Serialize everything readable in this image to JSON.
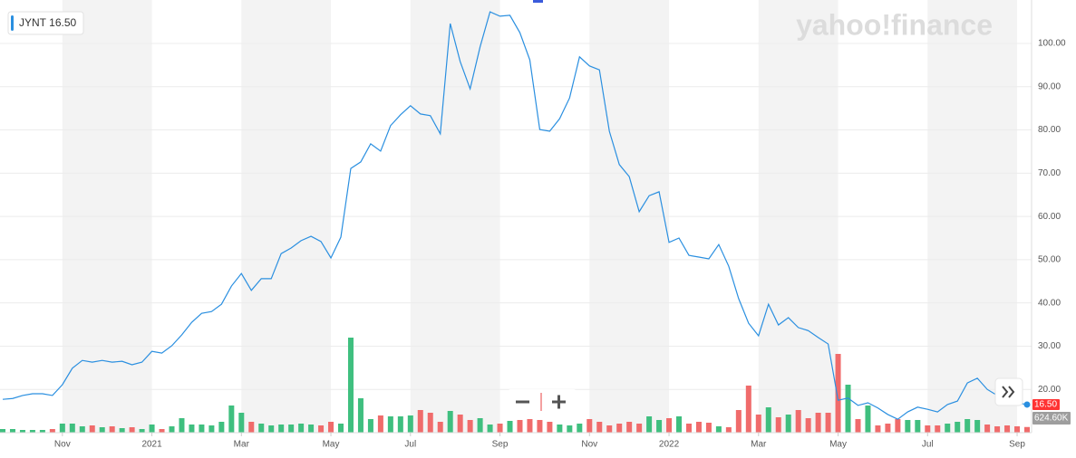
{
  "chart_data": {
    "type": "line",
    "watermark": "yahoo!finance",
    "categories": [
      null,
      null,
      null,
      null,
      null,
      null,
      "Nov",
      null,
      null,
      null,
      null,
      null,
      null,
      null,
      null,
      "2021",
      null,
      null,
      null,
      null,
      null,
      null,
      null,
      null,
      "Mar",
      null,
      null,
      null,
      null,
      null,
      null,
      null,
      null,
      "May",
      null,
      null,
      null,
      null,
      null,
      null,
      null,
      "Jul",
      null,
      null,
      null,
      null,
      null,
      null,
      null,
      null,
      "Sep",
      null,
      null,
      null,
      null,
      null,
      null,
      null,
      null,
      "Nov",
      null,
      null,
      null,
      null,
      null,
      null,
      null,
      "2022",
      null,
      null,
      null,
      null,
      null,
      null,
      null,
      null,
      "Mar",
      null,
      null,
      null,
      null,
      null,
      null,
      null,
      "May",
      null,
      null,
      null,
      null,
      null,
      null,
      null,
      null,
      "Jul",
      null,
      null,
      null,
      null,
      null,
      null,
      null,
      null,
      "Sep",
      null
    ],
    "series": [
      {
        "name": "JYNT",
        "color": "#2a8fe0",
        "values": [
          17.7,
          17.9,
          18.6,
          19.0,
          19.0,
          18.6,
          21.1,
          24.9,
          26.7,
          26.3,
          26.7,
          26.3,
          26.5,
          25.7,
          26.3,
          28.8,
          28.4,
          30.1,
          32.6,
          35.5,
          37.6,
          38.0,
          39.7,
          43.9,
          46.8,
          42.9,
          45.6,
          45.6,
          51.4,
          52.7,
          54.4,
          55.4,
          54.2,
          50.4,
          55.2,
          71.1,
          72.6,
          76.8,
          75.1,
          81.0,
          83.5,
          85.6,
          83.7,
          83.3,
          79.1,
          104.6,
          95.8,
          89.5,
          99.2,
          107.3,
          106.3,
          106.5,
          102.5,
          96.2,
          80.1,
          79.7,
          82.6,
          87.4,
          96.9,
          94.8,
          93.9,
          79.7,
          72.0,
          69.2,
          61.1,
          64.8,
          65.7,
          54.0,
          55.0,
          51.0,
          50.6,
          50.2,
          53.5,
          48.5,
          41.0,
          35.3,
          32.4,
          39.7,
          34.9,
          36.6,
          34.3,
          33.6,
          32.0,
          30.5,
          17.5,
          18.0,
          16.3,
          16.9,
          15.7,
          14.2,
          13.1,
          14.8,
          15.9,
          15.4,
          14.8,
          16.5,
          17.3,
          21.5,
          22.6,
          20.0,
          18.6,
          17.3,
          16.9,
          16.5
        ],
        "value_labels": [
          null,
          null,
          null,
          null,
          null,
          null,
          null,
          null,
          null,
          null,
          null,
          null,
          null,
          null,
          null,
          null,
          null,
          null,
          null,
          null,
          null,
          null,
          null,
          null,
          null,
          null,
          null,
          null,
          null,
          null,
          null,
          null,
          null,
          null,
          null,
          null,
          null,
          null,
          null,
          null,
          null,
          null,
          null,
          null,
          null,
          null,
          null,
          null,
          null,
          null,
          null,
          null,
          null,
          null,
          null,
          null,
          null,
          null,
          null,
          null,
          null,
          null,
          null,
          null,
          null,
          null,
          null,
          null,
          null,
          null,
          null,
          null,
          null,
          null,
          null,
          null,
          null,
          null,
          null,
          null,
          null,
          null,
          null,
          null,
          null,
          null,
          null,
          null,
          null,
          null,
          null,
          null,
          null,
          null,
          null,
          null,
          null,
          null,
          null,
          null,
          null,
          null,
          null,
          "16.50"
        ]
      }
    ],
    "volume": {
      "axis": "y2",
      "up_color": "#3fbf7f",
      "down_color": "#f06b6b",
      "values": [
        400000,
        400000,
        300000,
        300000,
        300000,
        400000,
        1000000,
        1000000,
        700000,
        800000,
        600000,
        700000,
        500000,
        600000,
        400000,
        900000,
        400000,
        700000,
        1600000,
        900000,
        900000,
        800000,
        1200000,
        3000000,
        2200000,
        1200000,
        1000000,
        800000,
        900000,
        900000,
        1000000,
        900000,
        800000,
        1200000,
        1000000,
        10500000,
        3800000,
        1500000,
        1900000,
        1800000,
        1800000,
        1900000,
        2500000,
        2200000,
        1200000,
        2400000,
        2000000,
        1400000,
        1600000,
        900000,
        1000000,
        1300000,
        1400000,
        1500000,
        1400000,
        1200000,
        900000,
        800000,
        1000000,
        1500000,
        1200000,
        800000,
        1000000,
        1200000,
        1000000,
        1800000,
        1400000,
        1600000,
        1800000,
        1000000,
        1200000,
        1100000,
        700000,
        600000,
        2500000,
        5200000,
        2000000,
        2800000,
        1700000,
        2000000,
        2500000,
        1600000,
        2200000,
        2200000,
        8700000,
        5300000,
        1500000,
        3000000,
        800000,
        1000000,
        1500000,
        1400000,
        1400000,
        800000,
        800000,
        1000000,
        1200000,
        1500000,
        1400000,
        900000,
        700000,
        800000,
        700000,
        624600
      ],
      "value_labels": [
        null,
        null,
        null,
        null,
        null,
        null,
        null,
        null,
        null,
        null,
        null,
        null,
        null,
        null,
        null,
        null,
        null,
        null,
        null,
        null,
        null,
        null,
        null,
        null,
        null,
        null,
        null,
        null,
        null,
        null,
        null,
        null,
        null,
        null,
        null,
        null,
        null,
        null,
        null,
        null,
        null,
        null,
        null,
        null,
        null,
        null,
        null,
        null,
        null,
        null,
        null,
        null,
        null,
        null,
        null,
        null,
        null,
        null,
        null,
        null,
        null,
        null,
        null,
        null,
        null,
        null,
        null,
        null,
        null,
        null,
        null,
        null,
        null,
        null,
        null,
        null,
        null,
        null,
        null,
        null,
        null,
        null,
        null,
        null,
        null,
        null,
        null,
        null,
        null,
        null,
        null,
        null,
        null,
        null,
        null,
        null,
        null,
        null,
        null,
        null,
        null,
        null,
        null,
        "624.60K"
      ]
    },
    "ylim": [
      10,
      109
    ],
    "yticks": [
      {
        "value": 20,
        "label": "20.00"
      },
      {
        "value": 30,
        "label": "30.00"
      },
      {
        "value": 40,
        "label": "40.00"
      },
      {
        "value": 50,
        "label": "50.00"
      },
      {
        "value": 60,
        "label": "60.00"
      },
      {
        "value": 70,
        "label": "70.00"
      },
      {
        "value": 80,
        "label": "80.00"
      },
      {
        "value": 90,
        "label": "90.00"
      },
      {
        "value": 100,
        "label": "100.00"
      }
    ],
    "y2lim": [
      0,
      47300000
    ],
    "grid": true
  }
}
